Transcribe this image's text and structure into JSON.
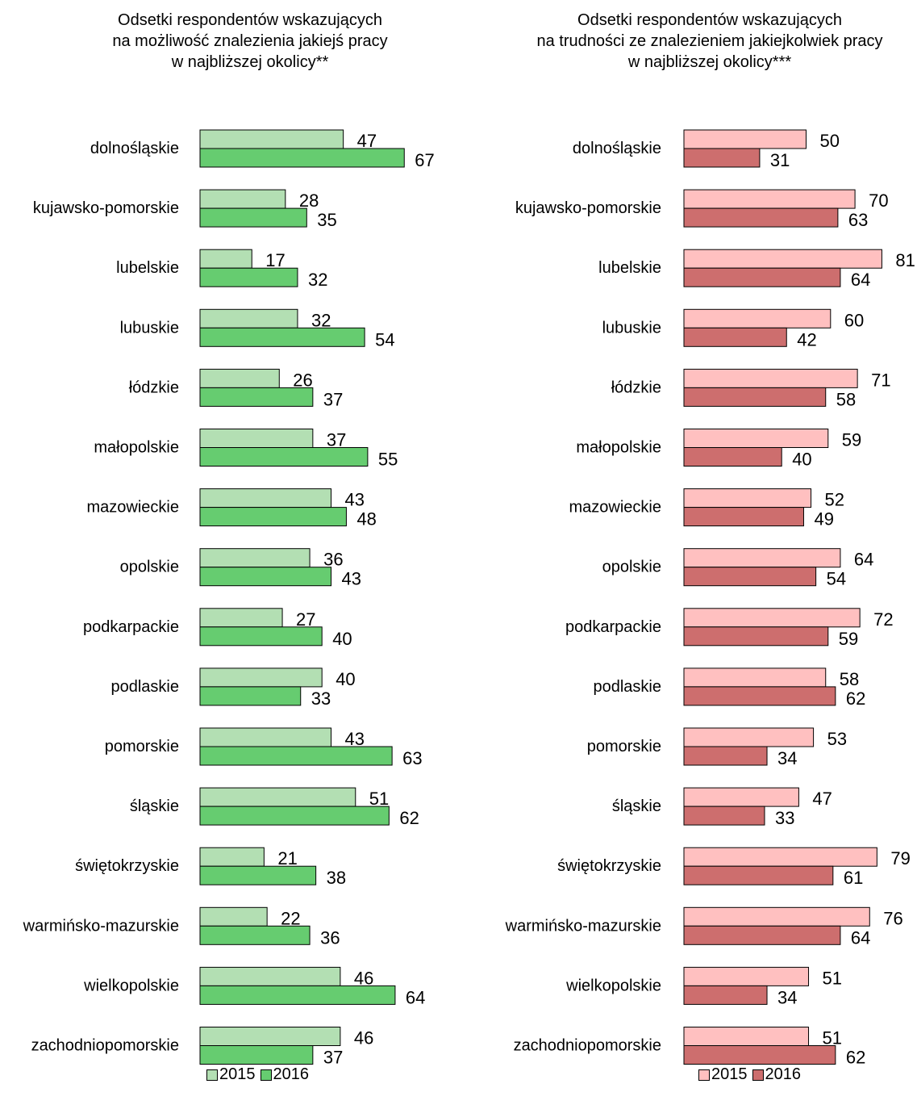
{
  "chart_data": [
    {
      "type": "bar",
      "orientation": "horizontal",
      "title_lines": [
        "Odsetki respondentów wskazujących",
        "na możliwość znalezienia jakiejś pracy",
        "w najbliższej okolicy**"
      ],
      "categories": [
        "dolnośląskie",
        "kujawsko-pomorskie",
        "lubelskie",
        "lubuskie",
        "łódzkie",
        "małopolskie",
        "mazowieckie",
        "opolskie",
        "podkarpackie",
        "podlaskie",
        "pomorskie",
        "śląskie",
        "świętokrzyskie",
        "warmińsko-mazurskie",
        "wielkopolskie",
        "zachodniopomorskie"
      ],
      "series": [
        {
          "name": "2015",
          "color": "#b3dfb3",
          "values": [
            47,
            28,
            17,
            32,
            26,
            37,
            43,
            36,
            27,
            40,
            43,
            51,
            21,
            22,
            46,
            46
          ]
        },
        {
          "name": "2016",
          "color": "#66cc70",
          "values": [
            67,
            35,
            32,
            54,
            37,
            55,
            48,
            43,
            40,
            33,
            63,
            62,
            38,
            36,
            64,
            37
          ]
        }
      ],
      "data_labels": true,
      "grid": false,
      "legend_position": "bottom"
    },
    {
      "type": "bar",
      "orientation": "horizontal",
      "title_lines": [
        "Odsetki respondentów wskazujących",
        "na trudności ze znalezieniem jakiejkolwiek pracy",
        "w najbliższej okolicy***"
      ],
      "categories": [
        "dolnośląskie",
        "kujawsko-pomorskie",
        "lubelskie",
        "lubuskie",
        "łódzkie",
        "małopolskie",
        "mazowieckie",
        "opolskie",
        "podkarpackie",
        "podlaskie",
        "pomorskie",
        "śląskie",
        "świętokrzyskie",
        "warmińsko-mazurskie",
        "wielkopolskie",
        "zachodniopomorskie"
      ],
      "series": [
        {
          "name": "2015",
          "color": "#ffc0c0",
          "values": [
            50,
            70,
            81,
            60,
            71,
            59,
            52,
            64,
            72,
            58,
            53,
            47,
            79,
            76,
            51,
            51
          ]
        },
        {
          "name": "2016",
          "color": "#cd6e6e",
          "values": [
            31,
            63,
            64,
            42,
            58,
            40,
            49,
            54,
            59,
            62,
            34,
            33,
            61,
            64,
            34,
            62
          ]
        }
      ],
      "data_labels": true,
      "grid": false,
      "legend_position": "bottom"
    }
  ]
}
